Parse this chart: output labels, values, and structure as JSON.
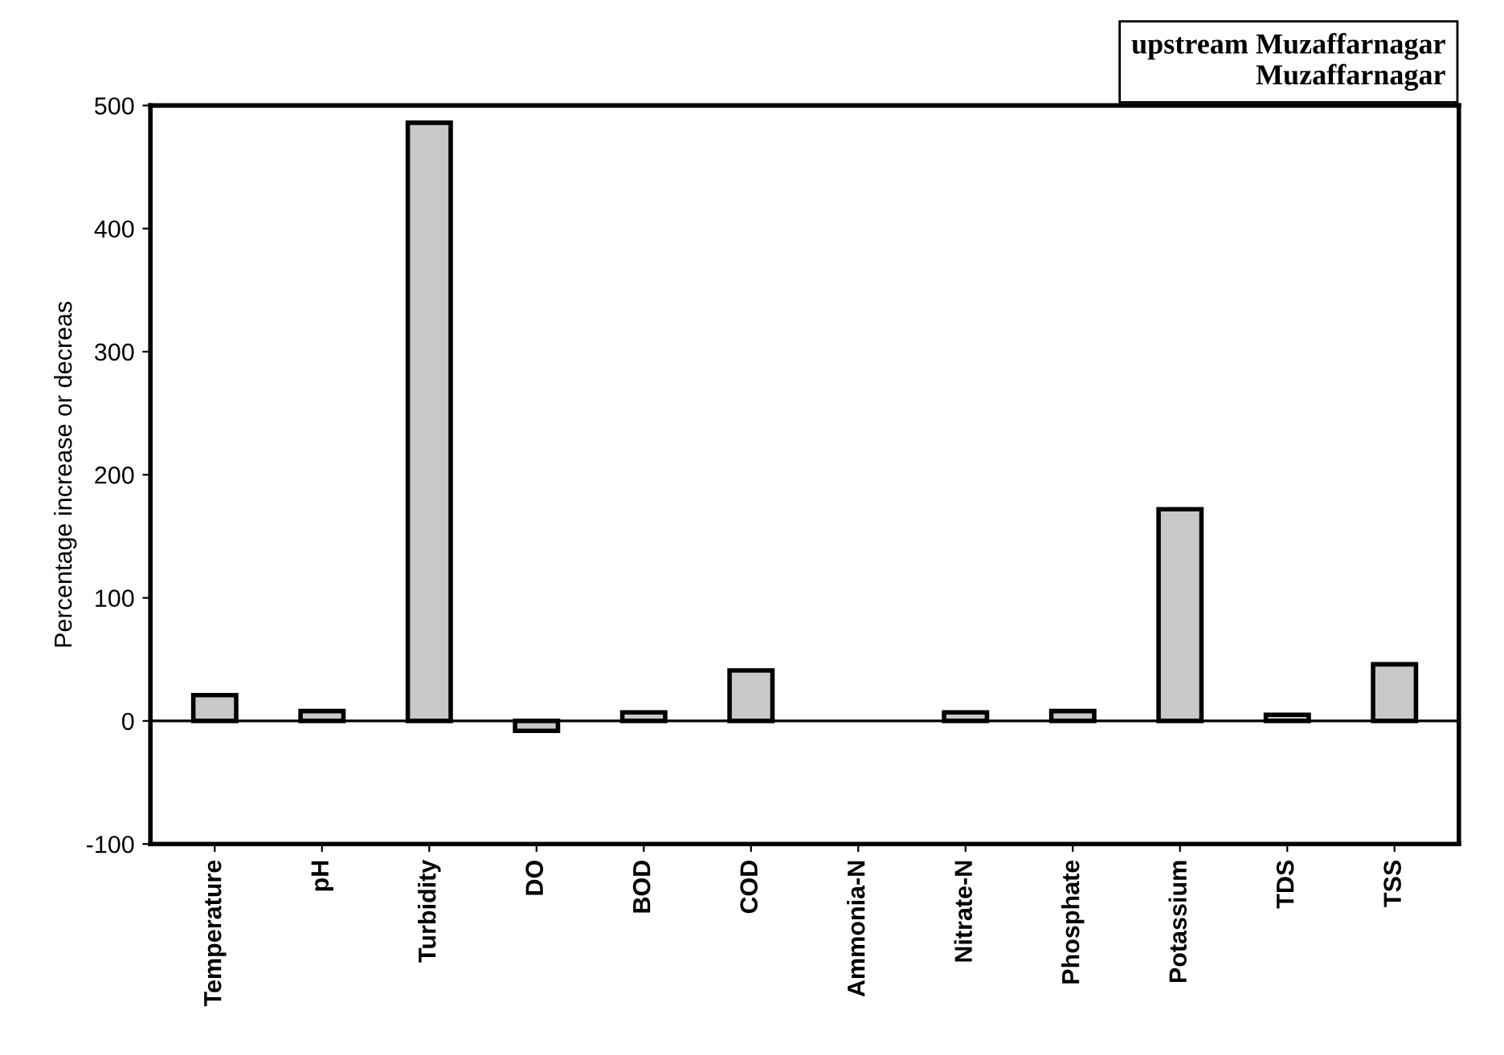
{
  "chart_data": {
    "type": "bar",
    "ylabel": "Percentage increase or decreas",
    "legend_title": "upstream Muzaffarnagar\nMuzaffarnagar",
    "categories": [
      "Temperature",
      "pH",
      "Turbidity",
      "DO",
      "BOD",
      "COD",
      "Ammonia-N",
      "Nitrate-N",
      "Phosphate",
      "Potassium",
      "TDS",
      "TSS"
    ],
    "series": [
      {
        "color": "#c8c8c8",
        "values": [
          21,
          8,
          486,
          -8,
          7,
          41,
          null,
          7,
          8,
          172,
          5,
          46
        ]
      }
    ],
    "ylim": [
      -100,
      500
    ],
    "yticks": [
      -100,
      0,
      100,
      200,
      300,
      400,
      500
    ],
    "grid": false,
    "ref_lines": [
      {
        "axis": "y",
        "value": 0,
        "color": "#000000"
      }
    ]
  }
}
